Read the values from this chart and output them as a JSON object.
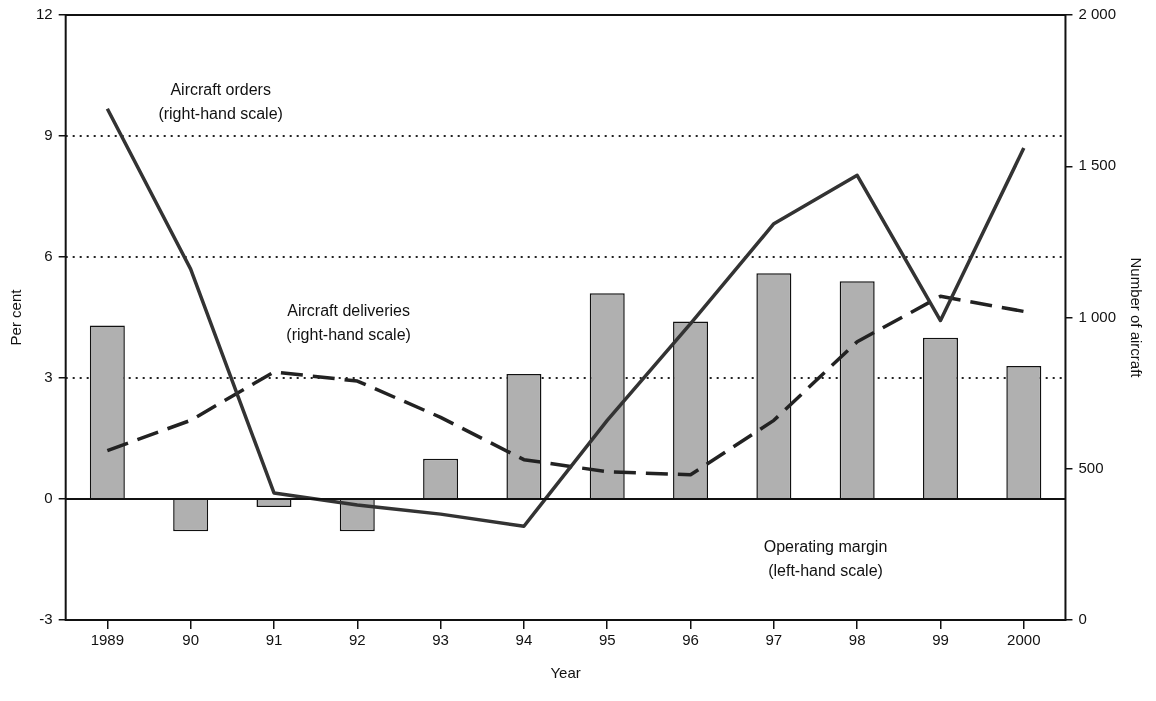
{
  "chart_data": {
    "type": "bar",
    "xlabel": "Year",
    "ylabel": "Per cent",
    "y2label": "Number of aircraft",
    "categories": [
      "1989",
      "90",
      "91",
      "92",
      "93",
      "94",
      "95",
      "96",
      "97",
      "98",
      "99",
      "2000"
    ],
    "series": [
      {
        "name": "Operating margin (left-hand scale)",
        "axis": "y",
        "color": "#b0b0b0",
        "values": [
          4.3,
          -0.8,
          -0.2,
          -0.8,
          1.0,
          3.1,
          5.1,
          4.4,
          5.6,
          5.4,
          4.0,
          3.3
        ]
      },
      {
        "name": "Aircraft orders (right-hand scale)",
        "type": "line",
        "axis": "y2",
        "color": "#333333",
        "line_style": "solid",
        "values": [
          1690,
          1160,
          420,
          380,
          350,
          310,
          660,
          980,
          1310,
          1470,
          990,
          1560
        ]
      },
      {
        "name": "Aircraft deliveries (right-hand scale)",
        "type": "line",
        "axis": "y2",
        "color": "#222222",
        "line_style": "dashed",
        "values": [
          560,
          660,
          820,
          790,
          670,
          530,
          490,
          480,
          660,
          920,
          1070,
          1020
        ]
      }
    ],
    "ylim": [
      -3,
      12
    ],
    "yticks": [
      -3,
      0,
      3,
      6,
      9,
      12
    ],
    "y2lim": [
      0,
      2000
    ],
    "y2ticks": [
      0,
      500,
      {
        "value": 1000,
        "label": "1 000"
      },
      {
        "value": 1500,
        "label": "1 500"
      },
      {
        "value": 2000,
        "label": "2 000"
      }
    ],
    "grid": "y",
    "legend": false,
    "marker": "none"
  }
}
